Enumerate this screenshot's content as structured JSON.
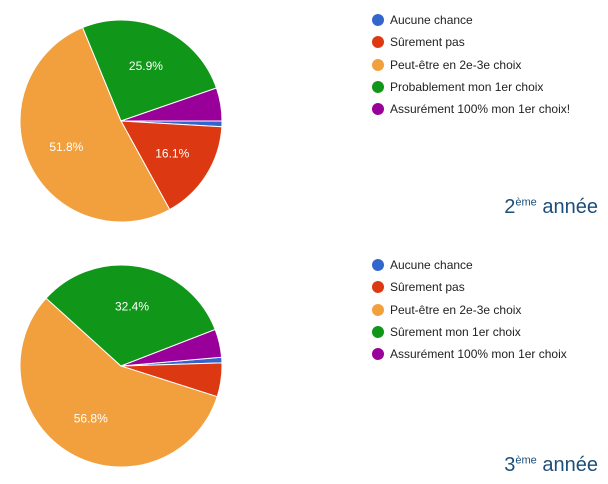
{
  "chart_data": [
    {
      "type": "pie",
      "categories": [
        "Aucune chance",
        "Sûrement pas",
        "Peut-être en 2e-3e choix",
        "Probablement mon 1er choix",
        "Assurément 100% mon 1er choix!"
      ],
      "values": [
        0.9,
        16.1,
        51.8,
        25.9,
        5.3
      ],
      "labels": [
        "",
        "16.1%",
        "51.8%",
        "25.9%",
        ""
      ],
      "colors": [
        "#3366cc",
        "#dc3912",
        "#f2a03d",
        "#109618",
        "#990099"
      ],
      "legend_position": "right",
      "caption": {
        "number": "2",
        "superscript": "ème",
        "word": "année"
      }
    },
    {
      "type": "pie",
      "categories": [
        "Aucune chance",
        "Sûrement pas",
        "Peut-être en 2e-3e choix",
        "Sûrement mon 1er choix",
        "Assurément 100% mon 1er choix"
      ],
      "values": [
        0.9,
        5.4,
        56.8,
        32.4,
        4.5
      ],
      "labels": [
        "",
        "",
        "56.8%",
        "32.4%",
        ""
      ],
      "colors": [
        "#3366cc",
        "#dc3912",
        "#f2a03d",
        "#109618",
        "#990099"
      ],
      "legend_position": "right",
      "caption": {
        "number": "3",
        "superscript": "ème",
        "word": "année"
      }
    }
  ]
}
